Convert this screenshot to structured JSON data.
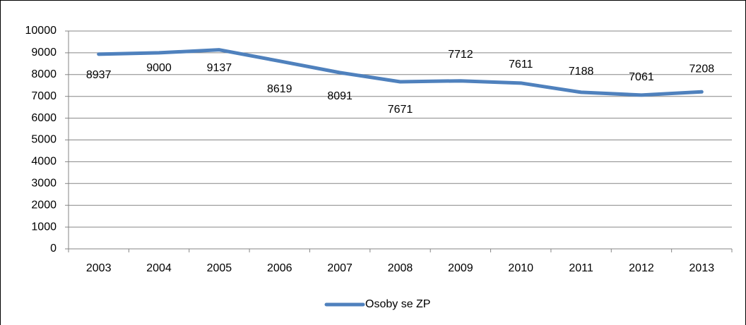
{
  "chart_data": {
    "type": "line",
    "categories": [
      "2003",
      "2004",
      "2005",
      "2006",
      "2007",
      "2008",
      "2009",
      "2010",
      "2011",
      "2012",
      "2013"
    ],
    "series": [
      {
        "name": "Osoby se ZP",
        "color": "#4f81bd",
        "values": [
          8937,
          9000,
          9137,
          8619,
          8091,
          7671,
          7712,
          7611,
          7188,
          7061,
          7208
        ]
      }
    ],
    "ylim": [
      0,
      10000
    ],
    "yticks": [
      0,
      1000,
      2000,
      3000,
      4000,
      5000,
      6000,
      7000,
      8000,
      9000,
      10000
    ],
    "grid": true,
    "legend": "bottom"
  }
}
